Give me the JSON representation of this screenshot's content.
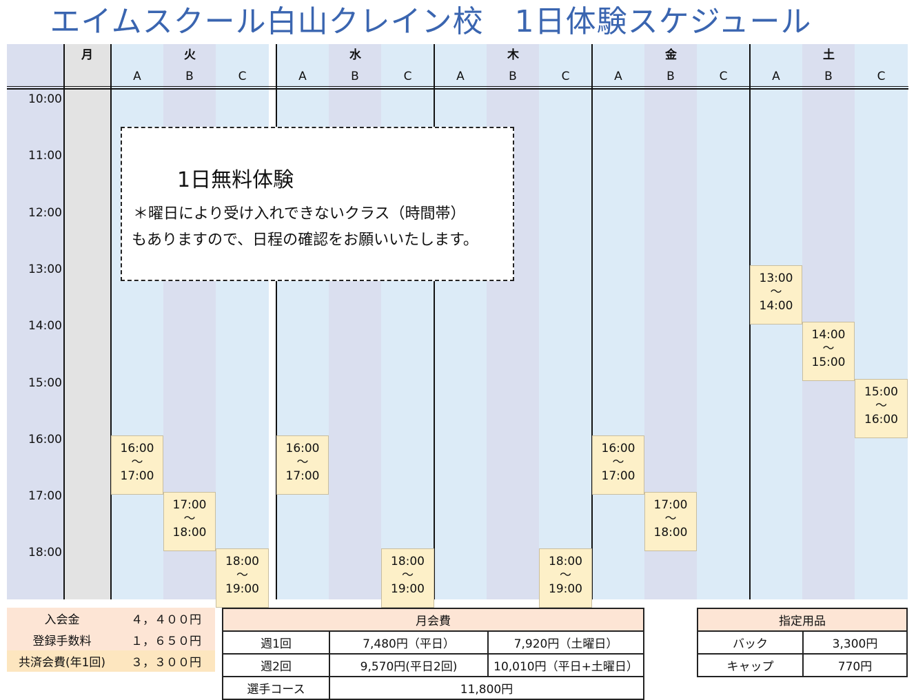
{
  "title": "エイムスクール白山クレイン校　1日体験スケジュール",
  "days": [
    {
      "label": "月",
      "subs": []
    },
    {
      "label": "火",
      "subs": [
        "A",
        "B",
        "C"
      ]
    },
    {
      "label": "水",
      "subs": [
        "A",
        "B",
        "C"
      ]
    },
    {
      "label": "木",
      "subs": [
        "A",
        "B",
        "C"
      ]
    },
    {
      "label": "金",
      "subs": [
        "A",
        "B",
        "C"
      ]
    },
    {
      "label": "土",
      "subs": [
        "A",
        "B",
        "C"
      ]
    }
  ],
  "times": [
    "10:00",
    "11:00",
    "12:00",
    "13:00",
    "14:00",
    "15:00",
    "16:00",
    "17:00",
    "18:00"
  ],
  "slots": [
    {
      "col": 0,
      "start": "16:00",
      "sep": "〜",
      "end": "17:00"
    },
    {
      "col": 1,
      "start": "17:00",
      "sep": "〜",
      "end": "18:00"
    },
    {
      "col": 2,
      "start": "18:00",
      "sep": "〜",
      "end": "19:00"
    },
    {
      "col": 3,
      "start": "16:00",
      "sep": "〜",
      "end": "17:00"
    },
    {
      "col": 5,
      "start": "18:00",
      "sep": "〜",
      "end": "19:00"
    },
    {
      "col": 8,
      "start": "18:00",
      "sep": "〜",
      "end": "19:00"
    },
    {
      "col": 9,
      "start": "16:00",
      "sep": "〜",
      "end": "17:00"
    },
    {
      "col": 10,
      "start": "17:00",
      "sep": "〜",
      "end": "18:00"
    },
    {
      "col": 12,
      "start": "13:00",
      "sep": "〜",
      "end": "14:00"
    },
    {
      "col": 13,
      "start": "14:00",
      "sep": "〜",
      "end": "15:00"
    },
    {
      "col": 14,
      "start": "15:00",
      "sep": "〜",
      "end": "16:00"
    }
  ],
  "note": {
    "title": "1日無料体験",
    "line1": "＊曜日により受け入れできないクラス（時間帯）",
    "line2": "もありますので、日程の確認をお願いいたします。"
  },
  "fees": [
    {
      "label": "入会金",
      "value": "４，４００円"
    },
    {
      "label": "登録手数料",
      "value": "１，６５０円"
    },
    {
      "label": "共済会費(年1回)",
      "value": "３，３００円"
    }
  ],
  "monthly": {
    "header": "月会費",
    "rows": [
      {
        "label": "週1回",
        "a": "7,480円（平日）",
        "b": "7,920円（土曜日）"
      },
      {
        "label": "週2回",
        "a": "9,570円(平日2回)",
        "b": "10,010円（平日+土曜日）"
      }
    ],
    "course": {
      "label": "選手コース",
      "value": "11,800円"
    }
  },
  "goods": {
    "header": "指定用品",
    "rows": [
      {
        "label": "バック",
        "value": "3,300円"
      },
      {
        "label": "キャップ",
        "value": "770円"
      }
    ]
  },
  "colors": {
    "title": "#3a65b0",
    "slot": "#fdf0c8",
    "band_light": "#dcebf7",
    "band_b": "#dadfef",
    "monday": "#e3e3e3",
    "left": "#dadfef",
    "fee_bg": "#fde5d5"
  }
}
